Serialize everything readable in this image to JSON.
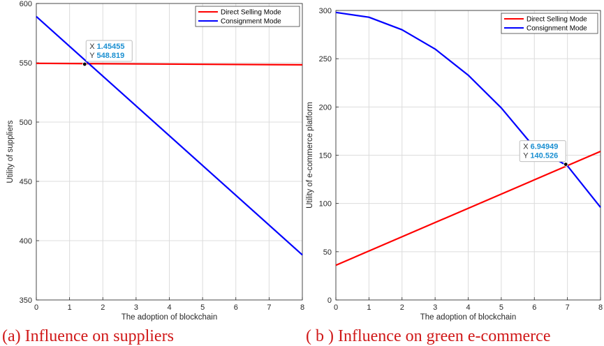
{
  "chart_data": [
    {
      "type": "line",
      "xlabel": "The adoption of blockchain",
      "ylabel": "Utility of suppliers",
      "xlim": [
        0,
        8
      ],
      "ylim": [
        350,
        600
      ],
      "xticks": [
        "0",
        "1",
        "2",
        "3",
        "4",
        "5",
        "6",
        "7",
        "8"
      ],
      "yticks": [
        "350",
        "400",
        "450",
        "500",
        "550",
        "600"
      ],
      "grid": true,
      "legend_position": "top-right",
      "series": [
        {
          "name": "Direct Selling Mode",
          "color": "#ff0000",
          "x": [
            0,
            8
          ],
          "y": [
            549.5,
            548.3
          ]
        },
        {
          "name": "Consignment Mode",
          "color": "#0000ff",
          "x": [
            0,
            8
          ],
          "y": [
            589,
            388
          ]
        }
      ],
      "datatip": {
        "x_label": "X",
        "y_label": "Y",
        "x_value": "1.45455",
        "y_value": "548.819",
        "x": 1.45455,
        "y": 548.819
      },
      "caption": "(a) Influence on suppliers"
    },
    {
      "type": "line",
      "xlabel": "The adoption of blockchain",
      "ylabel": "Utility of e-commerce platform",
      "xlim": [
        0,
        8
      ],
      "ylim": [
        0,
        300
      ],
      "xticks": [
        "0",
        "1",
        "2",
        "3",
        "4",
        "5",
        "6",
        "7",
        "8"
      ],
      "yticks": [
        "0",
        "50",
        "100",
        "150",
        "200",
        "250",
        "300"
      ],
      "grid": true,
      "legend_position": "top-right",
      "series": [
        {
          "name": "Direct Selling Mode",
          "color": "#ff0000",
          "x": [
            0,
            8
          ],
          "y": [
            36,
            154
          ]
        },
        {
          "name": "Consignment Mode",
          "color": "#0000ff",
          "x": [
            0,
            1,
            2,
            3,
            4,
            5,
            6,
            7,
            8
          ],
          "y": [
            298,
            293,
            280,
            260,
            233,
            199,
            158,
            139,
            96
          ]
        }
      ],
      "datatip": {
        "x_label": "X",
        "y_label": "Y",
        "x_value": "6.94949",
        "y_value": "140.526",
        "x": 6.94949,
        "y": 140.526
      },
      "caption": "( b ) Influence on green e-commerce"
    }
  ]
}
